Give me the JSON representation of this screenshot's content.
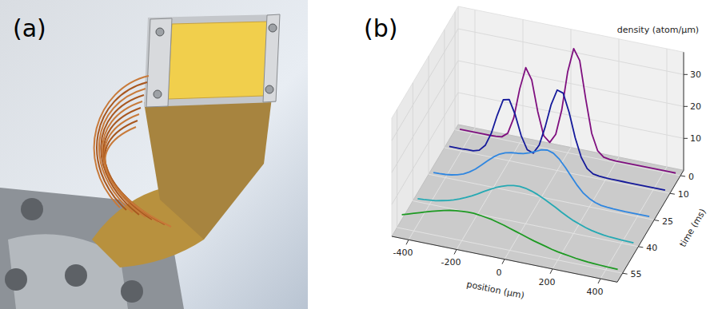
{
  "panel_labels": [
    "(a)",
    "(b)"
  ],
  "chart_data": {
    "type": "line3d",
    "xlabel": "position (µm)",
    "ylabel": "time (ms)",
    "zlabel": "density (atom/µm)",
    "x": [
      -450,
      -425,
      -400,
      -375,
      -350,
      -325,
      -300,
      -275,
      -250,
      -225,
      -200,
      -175,
      -150,
      -125,
      -100,
      -75,
      -50,
      -25,
      0,
      25,
      50,
      75,
      100,
      125,
      150,
      175,
      200,
      225,
      250,
      275,
      300,
      325,
      350,
      375,
      400,
      425,
      450
    ],
    "xlim": [
      -470,
      470
    ],
    "xticks": [
      -400,
      -200,
      0,
      200,
      400
    ],
    "ylim": [
      -3,
      60
    ],
    "yticks": [
      0,
      10,
      25,
      40,
      55
    ],
    "zlim": [
      0,
      37
    ],
    "zticks": [
      10,
      20,
      30
    ],
    "grid": true,
    "series": [
      {
        "time": 0,
        "color": "#7f0f7f",
        "values": [
          0.5,
          0.5,
          0.5,
          0.5,
          0.5,
          0.5,
          0.6,
          0.8,
          2.3,
          7.5,
          17,
          24,
          20.5,
          11,
          3.8,
          2.1,
          5,
          13,
          25.4,
          33,
          29.6,
          18,
          7.6,
          2.5,
          0.9,
          0.6,
          0.5,
          0.5,
          0.5,
          0.5,
          0.5,
          0.5,
          0.5,
          0.5,
          0.5,
          0.5,
          0.5
        ]
      },
      {
        "time": 10,
        "color": "#14199a",
        "values": [
          0.7,
          0.7,
          0.7,
          0.8,
          0.85,
          1.4,
          3.3,
          7.4,
          13.5,
          18.7,
          19.2,
          14.8,
          8.6,
          4.6,
          3.9,
          6.8,
          12.9,
          20.3,
          25.2,
          24.6,
          18.9,
          11.4,
          5.7,
          2.5,
          1.2,
          0.9,
          0.8,
          0.7,
          0.7,
          0.7,
          0.7,
          0.7,
          0.7,
          0.7,
          0.7,
          0.7,
          0.7
        ]
      },
      {
        "time": 25,
        "color": "#2f86e0",
        "values": [
          0.85,
          0.9,
          1.0,
          1.25,
          1.65,
          2.3,
          3.3,
          4.6,
          6.2,
          7.9,
          9.5,
          10.8,
          11.6,
          12,
          12.2,
          12.5,
          13.1,
          13.9,
          14.8,
          15.1,
          14.5,
          13,
          10.8,
          8.3,
          5.9,
          3.9,
          2.6,
          1.7,
          1.2,
          1.0,
          0.9,
          0.85,
          0.8,
          0.8,
          0.8,
          0.8,
          0.8
        ]
      },
      {
        "time": 40,
        "color": "#25a9b3",
        "values": [
          1.0,
          1.1,
          1.3,
          1.5,
          1.9,
          2.3,
          2.9,
          3.6,
          4.4,
          5.3,
          6.3,
          7.4,
          8.4,
          9.4,
          10.2,
          10.8,
          11.2,
          11.3,
          11.1,
          10.6,
          9.9,
          9.0,
          8.0,
          7.0,
          5.9,
          4.9,
          4.0,
          3.3,
          2.6,
          2.1,
          1.7,
          1.4,
          1.2,
          1.1,
          1.0,
          0.95,
          0.9
        ]
      },
      {
        "time": 55,
        "color": "#1d9a22",
        "values": [
          4.3,
          4.9,
          5.5,
          6.1,
          6.7,
          7.3,
          7.8,
          8.3,
          8.7,
          9.0,
          9.2,
          9.3,
          9.3,
          9.1,
          8.8,
          8.5,
          8.0,
          7.5,
          6.9,
          6.3,
          5.7,
          5.1,
          4.5,
          4.0,
          3.5,
          3.0,
          2.6,
          2.3,
          2.0,
          1.7,
          1.5,
          1.3,
          1.2,
          1.1,
          1.0,
          0.95,
          0.9
        ]
      }
    ]
  }
}
